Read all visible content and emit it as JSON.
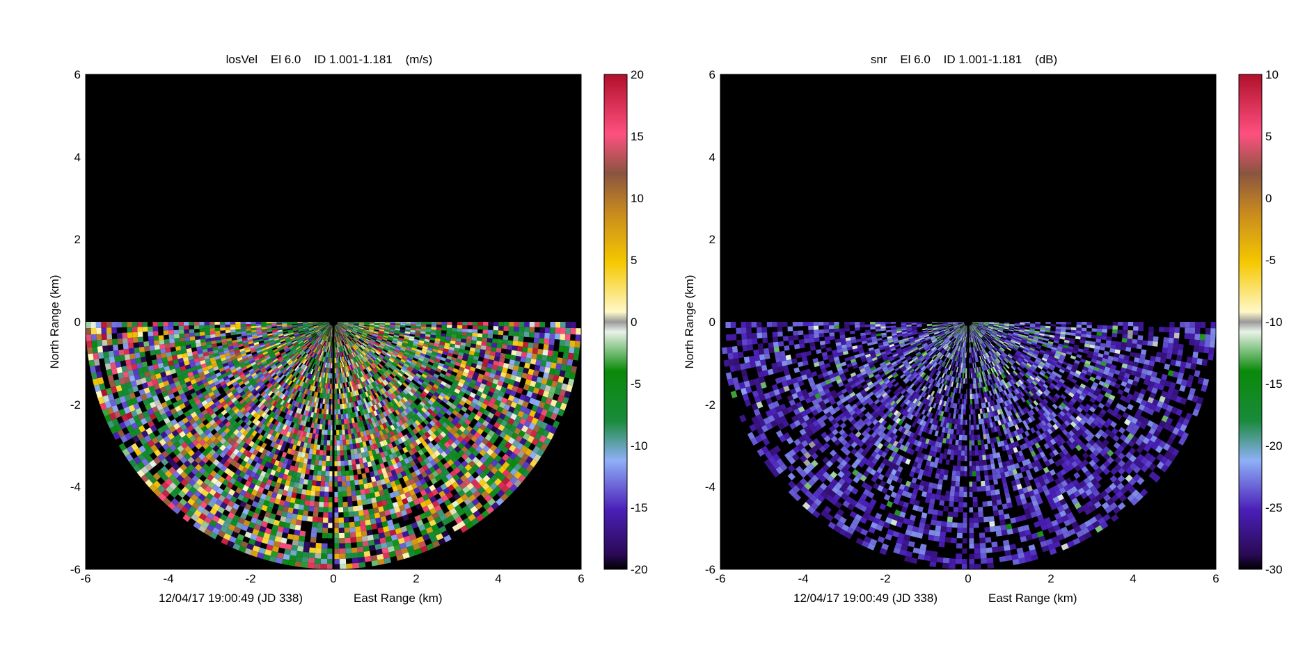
{
  "figure": {
    "background": "#ffffff",
    "plot_background": "#000000",
    "colormap_stops": [
      {
        "pos": 0.0,
        "color": "#000000"
      },
      {
        "pos": 0.03,
        "color": "#2a0a55"
      },
      {
        "pos": 0.12,
        "color": "#4a1fb8"
      },
      {
        "pos": 0.22,
        "color": "#8fb0f8"
      },
      {
        "pos": 0.3,
        "color": "#1a8a3c"
      },
      {
        "pos": 0.4,
        "color": "#0a8a0a"
      },
      {
        "pos": 0.48,
        "color": "#e8f2e8"
      },
      {
        "pos": 0.5,
        "color": "#9a9a9a"
      },
      {
        "pos": 0.52,
        "color": "#fff8c8"
      },
      {
        "pos": 0.62,
        "color": "#f5c800"
      },
      {
        "pos": 0.72,
        "color": "#c88a1e"
      },
      {
        "pos": 0.8,
        "color": "#8a5540"
      },
      {
        "pos": 0.88,
        "color": "#ff5080"
      },
      {
        "pos": 1.0,
        "color": "#b0102a"
      }
    ]
  },
  "chart_data": [
    {
      "type": "heatmap",
      "title": "losVel    El 6.0    ID 1.001-1.181    (m/s)",
      "xlabel": "East Range (km)",
      "ylabel": "North Range (km)",
      "timestamp": "12/04/17 19:00:49 (JD 338)",
      "xlim": [
        -6,
        6
      ],
      "ylim": [
        -6,
        6
      ],
      "xticks": [
        "-6",
        "-4",
        "-2",
        "0",
        "2",
        "4",
        "6"
      ],
      "yticks": [
        "6",
        "4",
        "2",
        "0",
        "-2",
        "-4",
        "-6"
      ],
      "colorbar": {
        "min": -20,
        "max": 20,
        "ticks": [
          "20",
          "15",
          "10",
          "5",
          "0",
          "-5",
          "-10",
          "-15",
          "-20"
        ]
      },
      "scan": {
        "sector_deg": [
          180,
          360
        ],
        "max_range_km": 6,
        "dominant_values": [
          -7.5,
          -2.5,
          -13
        ],
        "noise_range": [
          -20,
          20
        ]
      }
    },
    {
      "type": "heatmap",
      "title": "snr    El 6.0    ID 1.001-1.181    (dB)",
      "xlabel": "East Range (km)",
      "ylabel": "North Range (km)",
      "timestamp": "12/04/17 19:00:49 (JD 338)",
      "xlim": [
        -6,
        6
      ],
      "ylim": [
        -6,
        6
      ],
      "xticks": [
        "-6",
        "-4",
        "-2",
        "0",
        "2",
        "4",
        "6"
      ],
      "yticks": [
        "6",
        "4",
        "2",
        "0",
        "-2",
        "-4",
        "-6"
      ],
      "colorbar": {
        "min": -30,
        "max": 10,
        "ticks": [
          "10",
          "5",
          "0",
          "-5",
          "-10",
          "-15",
          "-20",
          "-25",
          "-30"
        ]
      },
      "scan": {
        "sector_deg": [
          180,
          360
        ],
        "max_range_km": 6,
        "dominant_values": [
          -26,
          -23,
          -12
        ],
        "noise_range": [
          -30,
          -24
        ]
      }
    }
  ]
}
